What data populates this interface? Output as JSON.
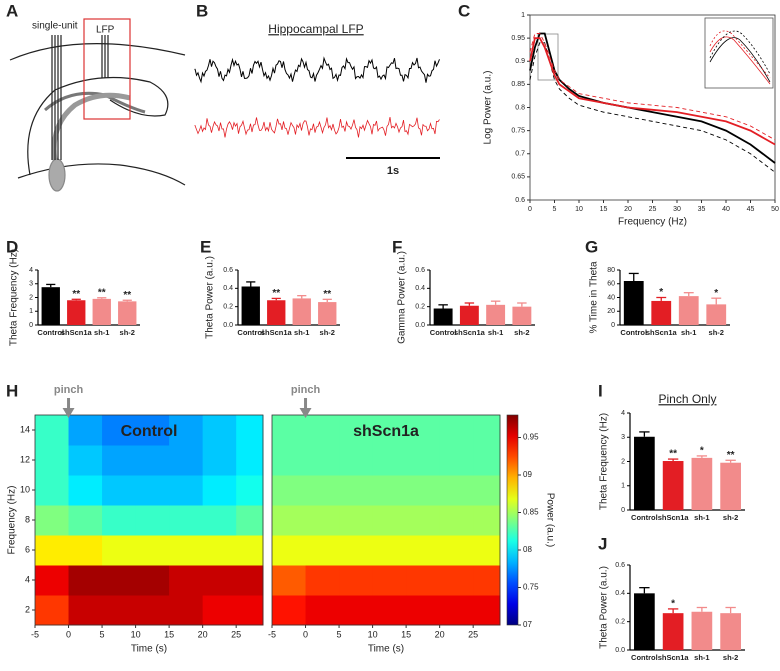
{
  "panel_labels": [
    "A",
    "B"
  ],
  "schematic": {
    "labels": [
      "single-unit",
      "LFP"
    ]
  },
  "traces": {
    "title": "Hippocampal LFP",
    "scale_label": "1s"
  },
  "chart_data": [
    {
      "type": "line",
      "panel": "C",
      "xlabel": "Frequency (Hz)",
      "ylabel": "Log Power (a.u.)",
      "xlim": [
        0,
        50
      ],
      "ylim": [
        0.6,
        1
      ],
      "xticks": [
        0,
        5,
        10,
        15,
        20,
        25,
        30,
        35,
        40,
        45,
        50
      ],
      "yticks": [
        0.6,
        0.65,
        0.7,
        0.75,
        0.8,
        0.85,
        0.9,
        0.95,
        1
      ],
      "x": [
        0,
        1,
        2,
        3,
        4,
        5,
        6,
        8,
        10,
        15,
        20,
        25,
        30,
        35,
        40,
        45,
        50
      ],
      "series": [
        {
          "color": "#000000",
          "dash": false,
          "values": [
            0.88,
            0.93,
            0.96,
            0.96,
            0.92,
            0.88,
            0.86,
            0.84,
            0.825,
            0.81,
            0.8,
            0.79,
            0.78,
            0.77,
            0.75,
            0.72,
            0.68
          ]
        },
        {
          "color": "#000000",
          "dash": true,
          "values": [
            0.86,
            0.91,
            0.94,
            0.94,
            0.9,
            0.86,
            0.84,
            0.82,
            0.805,
            0.79,
            0.78,
            0.77,
            0.76,
            0.75,
            0.73,
            0.7,
            0.66
          ]
        },
        {
          "color": "#e31e24",
          "dash": false,
          "values": [
            0.9,
            0.95,
            0.95,
            0.93,
            0.9,
            0.87,
            0.85,
            0.835,
            0.82,
            0.81,
            0.8,
            0.795,
            0.79,
            0.78,
            0.77,
            0.75,
            0.72
          ]
        },
        {
          "color": "#e31e24",
          "dash": true,
          "values": [
            0.92,
            0.96,
            0.96,
            0.94,
            0.91,
            0.88,
            0.86,
            0.845,
            0.83,
            0.82,
            0.81,
            0.805,
            0.8,
            0.79,
            0.78,
            0.76,
            0.73
          ]
        }
      ]
    },
    {
      "type": "bar",
      "panel": "D",
      "ylabel": "Theta Frequency (Hz)",
      "categories": [
        "Control",
        "shScn1a",
        "sh-1",
        "sh-2"
      ],
      "colors": [
        "#000000",
        "#e31e24",
        "#f28b8b",
        "#f28b8b"
      ],
      "values": [
        2.75,
        1.8,
        1.9,
        1.72
      ],
      "errors": [
        0.2,
        0.07,
        0.08,
        0.08
      ],
      "annotations": [
        null,
        "**",
        "**",
        "**"
      ],
      "ylim": [
        0,
        4
      ],
      "yticks": [
        0,
        1,
        2,
        3,
        4
      ]
    },
    {
      "type": "bar",
      "panel": "E",
      "ylabel": "Theta Power (a.u.)",
      "categories": [
        "Control",
        "shScn1a",
        "sh-1",
        "sh-2"
      ],
      "colors": [
        "#000000",
        "#e31e24",
        "#f28b8b",
        "#f28b8b"
      ],
      "values": [
        0.42,
        0.27,
        0.29,
        0.25
      ],
      "errors": [
        0.05,
        0.02,
        0.03,
        0.03
      ],
      "annotations": [
        null,
        "**",
        null,
        "**"
      ],
      "ylim": [
        0,
        0.6
      ],
      "yticks": [
        {
          "value": 0,
          "label": "0.0"
        },
        0.2,
        0.4,
        0.6
      ]
    },
    {
      "type": "bar",
      "panel": "F",
      "ylabel": "Gamma Power (a.u.)",
      "categories": [
        "Control",
        "shScn1a",
        "sh-1",
        "sh-2"
      ],
      "colors": [
        "#000000",
        "#e31e24",
        "#f28b8b",
        "#f28b8b"
      ],
      "values": [
        0.18,
        0.21,
        0.22,
        0.2
      ],
      "errors": [
        0.04,
        0.03,
        0.04,
        0.04
      ],
      "annotations": [
        null,
        null,
        null,
        null
      ],
      "ylim": [
        0,
        0.6
      ],
      "yticks": [
        {
          "value": 0,
          "label": "0.0"
        },
        0.2,
        0.4,
        0.6
      ]
    },
    {
      "type": "bar",
      "panel": "G",
      "ylabel": "% Time in Theta",
      "categories": [
        "Control",
        "shScn1a",
        "sh-1",
        "sh-2"
      ],
      "colors": [
        "#000000",
        "#e31e24",
        "#f28b8b",
        "#f28b8b"
      ],
      "values": [
        64,
        35,
        42,
        30
      ],
      "errors": [
        11,
        5,
        5,
        9
      ],
      "annotations": [
        null,
        "*",
        null,
        "*"
      ],
      "ylim": [
        0,
        80
      ],
      "yticks": [
        0,
        20,
        40,
        60,
        80
      ]
    },
    {
      "type": "heatmap",
      "panel": "H",
      "xlabel": "Time (s)",
      "ylabel": "Frequency (Hz)",
      "annotation": "pinch",
      "annotation_x": 0,
      "xlim": [
        -5,
        29
      ],
      "xticks": [
        -5,
        0,
        5,
        10,
        15,
        20,
        25
      ],
      "ylim": [
        1,
        15
      ],
      "yticks": [
        2,
        4,
        6,
        8,
        10,
        12,
        14
      ],
      "x_edges": [
        -5,
        0,
        5,
        10,
        15,
        20,
        25,
        29
      ],
      "y_edges": [
        1,
        3,
        5,
        7,
        9,
        11,
        13,
        15
      ],
      "colormap": "jet",
      "maps": [
        {
          "title": "Control",
          "z": [
            [
              0.93,
              0.96,
              0.96,
              0.96,
              0.96,
              0.95,
              0.95
            ],
            [
              0.95,
              0.97,
              0.97,
              0.97,
              0.96,
              0.96,
              0.96
            ],
            [
              0.88,
              0.88,
              0.87,
              0.87,
              0.87,
              0.87,
              0.87
            ],
            [
              0.84,
              0.83,
              0.82,
              0.82,
              0.82,
              0.82,
              0.83
            ],
            [
              0.82,
              0.8,
              0.79,
              0.79,
              0.79,
              0.8,
              0.81
            ],
            [
              0.82,
              0.79,
              0.78,
              0.78,
              0.78,
              0.79,
              0.8
            ],
            [
              0.82,
              0.78,
              0.77,
              0.77,
              0.78,
              0.79,
              0.8
            ]
          ]
        },
        {
          "title": "shScn1a",
          "z": [
            [
              0.94,
              0.95,
              0.95,
              0.95,
              0.95,
              0.95,
              0.95
            ],
            [
              0.92,
              0.93,
              0.93,
              0.93,
              0.93,
              0.93,
              0.93
            ],
            [
              0.87,
              0.87,
              0.87,
              0.87,
              0.87,
              0.87,
              0.87
            ],
            [
              0.85,
              0.85,
              0.85,
              0.85,
              0.85,
              0.85,
              0.85
            ],
            [
              0.84,
              0.84,
              0.84,
              0.84,
              0.84,
              0.84,
              0.84
            ],
            [
              0.83,
              0.83,
              0.83,
              0.83,
              0.83,
              0.83,
              0.83
            ],
            [
              0.83,
              0.83,
              0.83,
              0.83,
              0.83,
              0.83,
              0.83
            ]
          ]
        }
      ],
      "colorbar": {
        "label": "Power (a.u.)",
        "lim": [
          0.7,
          0.98
        ],
        "ticks": [
          {
            "value": 0.7,
            "label": "07"
          },
          0.75,
          {
            "value": 0.8,
            "label": "08"
          },
          0.85,
          {
            "value": 0.9,
            "label": "09"
          },
          0.95
        ]
      }
    },
    {
      "type": "bar",
      "panel": "I",
      "title": "Pinch Only",
      "ylabel": "Theta Frequency (Hz)",
      "categories": [
        "Control",
        "shScn1a",
        "sh-1",
        "sh-2"
      ],
      "colors": [
        "#000000",
        "#e31e24",
        "#f28b8b",
        "#f28b8b"
      ],
      "values": [
        3.02,
        2.02,
        2.15,
        1.95
      ],
      "errors": [
        0.2,
        0.08,
        0.08,
        0.1
      ],
      "annotations": [
        null,
        "**",
        "*",
        "**"
      ],
      "ylim": [
        0,
        4
      ],
      "yticks": [
        0,
        1,
        2,
        3,
        4
      ]
    },
    {
      "type": "bar",
      "panel": "J",
      "ylabel": "Theta Power (a.u.)",
      "categories": [
        "Control",
        "shScn1a",
        "sh-1",
        "sh-2"
      ],
      "colors": [
        "#000000",
        "#e31e24",
        "#f28b8b",
        "#f28b8b"
      ],
      "values": [
        0.4,
        0.26,
        0.27,
        0.26
      ],
      "errors": [
        0.04,
        0.03,
        0.03,
        0.04
      ],
      "annotations": [
        null,
        "*",
        null,
        null
      ],
      "ylim": [
        0,
        0.6
      ],
      "yticks": [
        {
          "value": 0,
          "label": "0.0"
        },
        0.2,
        0.4,
        0.6
      ]
    }
  ]
}
